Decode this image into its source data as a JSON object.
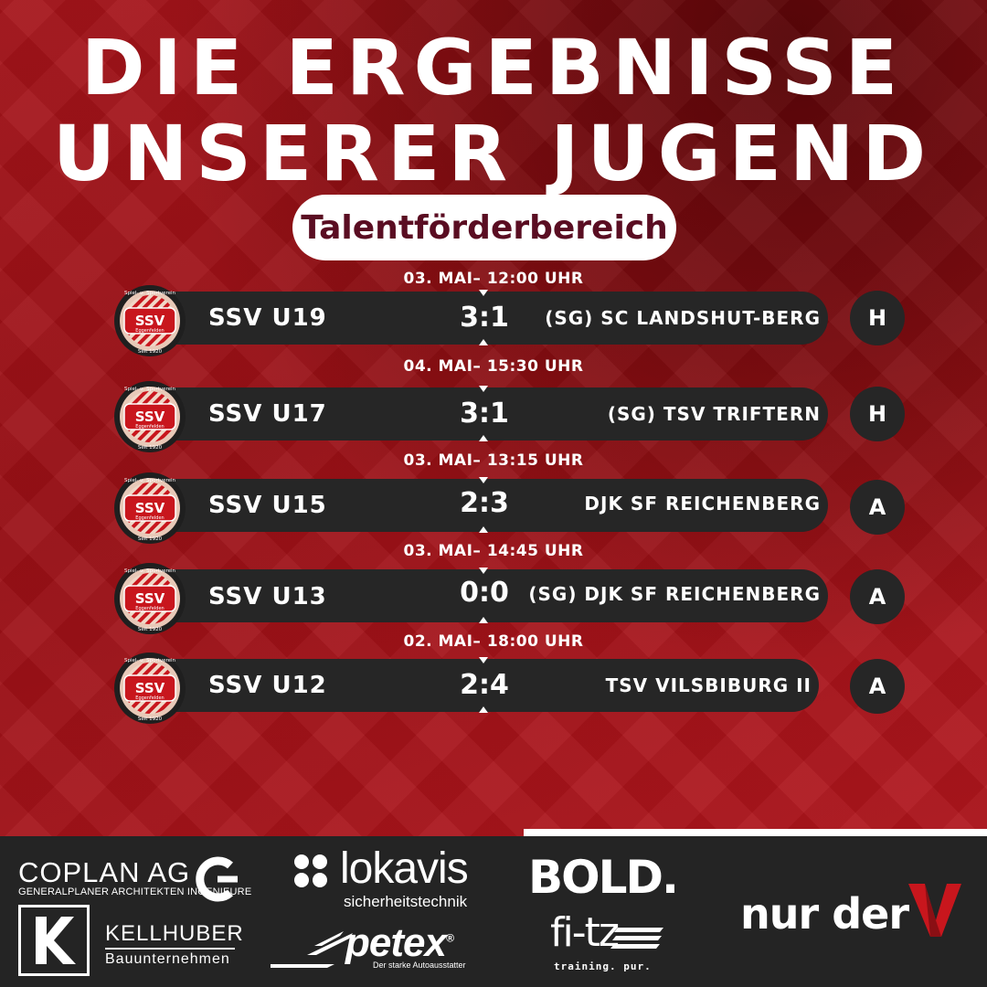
{
  "title_line1": "DIE ERGEBNISSE",
  "title_line2": "UNSERER JUGEND",
  "subtitle": "Talentförderbereich",
  "club_logo": {
    "arc_text": "Spiel- u. Sportverein",
    "abbr": "SSV",
    "city": "Eggenfelden",
    "since": "Seit 1920",
    "colors": {
      "red": "#c8161d",
      "ring": "#e8c9b8",
      "dark": "#1f1f1f"
    }
  },
  "matches": [
    {
      "datetime": "03. MAI– 12:00 UHR",
      "home": "SSV U19",
      "score": "3:1",
      "away": "(SG) SC LANDSHUT-BERG",
      "venue": "H"
    },
    {
      "datetime": "04. MAI– 15:30 UHR",
      "home": "SSV U17",
      "score": "3:1",
      "away": "(SG) TSV TRIFTERN",
      "venue": "H"
    },
    {
      "datetime": "03. MAI– 13:15 UHR",
      "home": "SSV U15",
      "score": "2:3",
      "away": "DJK SF REICHENBERG",
      "venue": "A"
    },
    {
      "datetime": "03. MAI– 14:45 UHR",
      "home": "SSV U13",
      "score": "0:0",
      "away": "(SG) DJK SF REICHENBERG",
      "venue": "A"
    },
    {
      "datetime": "02. MAI– 18:00 UHR",
      "home": "SSV U12",
      "score": "2:4",
      "away": "TSV VILSBIBURG II",
      "venue": "A"
    }
  ],
  "sponsors": {
    "coplan": {
      "name": "COPLAN AG",
      "sub": "GENERALPLANER ARCHITEKTEN INGENIEURE",
      "icon": "coplan-c-icon"
    },
    "kellhuber": {
      "name": "KELLHUBER",
      "sub": "Bauunternehmen",
      "icon": "k-logo-icon"
    },
    "lokavis": {
      "name": "lokavis",
      "sub": "sicherheitstechnik",
      "icon": "four-dots-icon"
    },
    "petex": {
      "name": "petex",
      "mark": "®",
      "sub": "Der starke Autoausstatter",
      "icon": "swoosh-icon"
    },
    "bold": {
      "name": "BOLD."
    },
    "fitz": {
      "name": "fi-tz",
      "sub": "training. pur.",
      "icon": "stripes-icon"
    },
    "nurder": {
      "name": "nur der",
      "icon": "red-v-icon",
      "accent": "#c8161d"
    }
  },
  "colors": {
    "background": "#9e1117",
    "bar": "#262626",
    "subtitle_text": "#5a0d22",
    "footer": "#242424"
  }
}
